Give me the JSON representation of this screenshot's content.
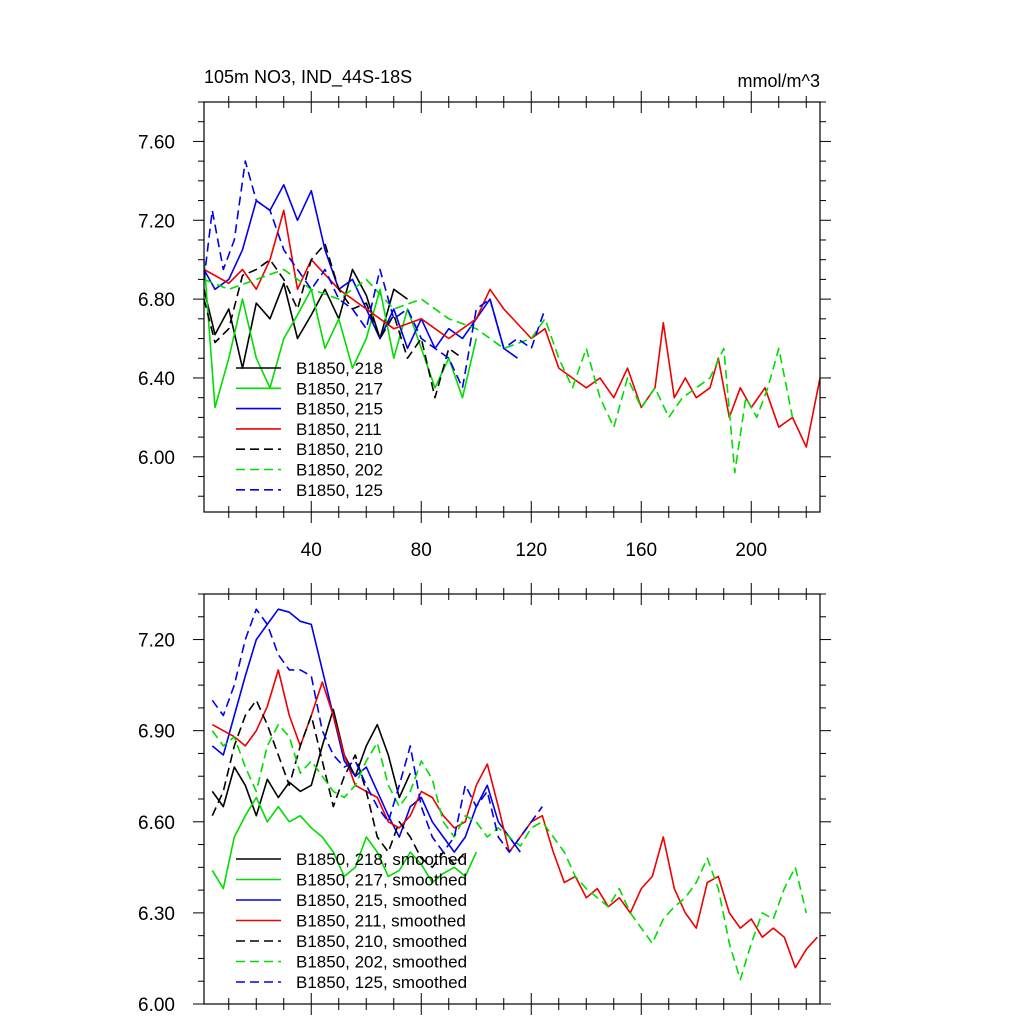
{
  "chart_data": [
    {
      "type": "line",
      "title": "105m NO3, IND_44S-18S",
      "units": "mmol/m^3",
      "xlabel": "",
      "ylabel": "",
      "xlim": [
        1,
        225
      ],
      "ylim": [
        5.72,
        7.8
      ],
      "x_ticks": [
        40,
        80,
        120,
        160,
        200
      ],
      "y_ticks": [
        6.0,
        6.4,
        6.8,
        7.2,
        7.6
      ],
      "y_tick_labels": [
        "6.00",
        "6.40",
        "6.80",
        "7.20",
        "7.60"
      ],
      "x_tick_labels": [
        "40",
        "80",
        "120",
        "160",
        "200"
      ],
      "grid": false,
      "legend": "bottom-left",
      "series": [
        {
          "name": "B1850, 218",
          "color": "#000000",
          "dash": "solid",
          "x": [
            1,
            5,
            10,
            15,
            20,
            25,
            30,
            35,
            40,
            45,
            50,
            55,
            60,
            65,
            70,
            75
          ],
          "y": [
            6.85,
            6.62,
            6.75,
            6.45,
            6.78,
            6.7,
            6.88,
            6.6,
            6.72,
            6.85,
            6.7,
            6.95,
            6.82,
            6.6,
            6.85,
            6.8
          ]
        },
        {
          "name": "B1850, 217",
          "color": "#00dd00",
          "dash": "solid",
          "x": [
            1,
            5,
            10,
            15,
            20,
            25,
            30,
            35,
            40,
            45,
            50,
            55,
            60,
            65,
            70,
            75,
            80,
            85,
            90,
            95,
            100
          ],
          "y": [
            7.0,
            6.25,
            6.5,
            6.8,
            6.5,
            6.35,
            6.6,
            6.72,
            6.85,
            6.55,
            6.7,
            6.45,
            6.6,
            6.85,
            6.5,
            6.75,
            6.55,
            6.35,
            6.5,
            6.3,
            6.6
          ]
        },
        {
          "name": "B1850, 215",
          "color": "#0000ee",
          "dash": "solid",
          "x": [
            1,
            5,
            10,
            15,
            20,
            25,
            30,
            35,
            40,
            45,
            50,
            55,
            60,
            65,
            70,
            75,
            80,
            85,
            90,
            95,
            100,
            105,
            110,
            115
          ],
          "y": [
            6.95,
            6.85,
            6.9,
            7.05,
            7.3,
            7.25,
            7.38,
            7.2,
            7.35,
            7.05,
            6.85,
            6.9,
            6.75,
            6.6,
            6.75,
            6.55,
            6.7,
            6.55,
            6.65,
            6.6,
            6.7,
            6.8,
            6.55,
            6.5
          ]
        },
        {
          "name": "B1850, 211",
          "color": "#ee0000",
          "dash": "solid",
          "x": [
            1,
            5,
            10,
            15,
            20,
            25,
            30,
            35,
            40,
            50,
            60,
            70,
            80,
            90,
            100,
            105,
            110,
            120,
            125,
            130,
            135,
            140,
            145,
            150,
            155,
            160,
            165,
            168,
            172,
            176,
            180,
            185,
            188,
            192,
            196,
            200,
            205,
            210,
            215,
            220,
            225
          ],
          "y": [
            6.95,
            6.92,
            6.88,
            6.95,
            6.85,
            7.0,
            7.25,
            6.85,
            7.0,
            6.85,
            6.75,
            6.65,
            6.7,
            6.6,
            6.7,
            6.85,
            6.75,
            6.6,
            6.65,
            6.45,
            6.4,
            6.35,
            6.4,
            6.3,
            6.45,
            6.25,
            6.35,
            6.68,
            6.3,
            6.4,
            6.3,
            6.35,
            6.5,
            6.2,
            6.35,
            6.25,
            6.35,
            6.15,
            6.2,
            6.05,
            6.4
          ]
        },
        {
          "name": "B1850, 210",
          "color": "#000000",
          "dash": "dashed",
          "x": [
            1,
            5,
            10,
            15,
            20,
            25,
            30,
            35,
            40,
            45,
            50,
            55,
            60,
            65,
            70,
            75,
            80,
            85,
            90,
            95
          ],
          "y": [
            6.8,
            6.58,
            6.65,
            6.92,
            6.95,
            7.0,
            6.9,
            6.75,
            7.0,
            7.08,
            6.85,
            6.75,
            6.78,
            6.6,
            6.72,
            6.5,
            6.6,
            6.3,
            6.55,
            6.5
          ]
        },
        {
          "name": "B1850, 202",
          "color": "#00dd00",
          "dash": "dashed",
          "x": [
            1,
            10,
            20,
            30,
            40,
            50,
            60,
            70,
            80,
            90,
            100,
            110,
            120,
            125,
            130,
            135,
            140,
            145,
            150,
            155,
            160,
            165,
            170,
            175,
            180,
            185,
            190,
            194,
            198,
            202,
            206,
            210,
            215
          ],
          "y": [
            6.9,
            6.85,
            6.9,
            6.95,
            6.85,
            6.8,
            6.9,
            6.75,
            6.8,
            6.7,
            6.65,
            6.55,
            6.6,
            6.7,
            6.5,
            6.35,
            6.55,
            6.3,
            6.15,
            6.4,
            6.25,
            6.35,
            6.2,
            6.3,
            6.35,
            6.4,
            6.55,
            5.92,
            6.3,
            6.2,
            6.35,
            6.55,
            6.2
          ]
        },
        {
          "name": "B1850, 125",
          "color": "#0000ee",
          "dash": "dashed",
          "x": [
            1,
            4,
            8,
            12,
            16,
            20,
            25,
            30,
            35,
            40,
            45,
            50,
            55,
            60,
            65,
            70,
            75,
            80,
            85,
            90,
            95,
            100,
            105,
            110,
            115,
            120,
            125
          ],
          "y": [
            6.9,
            7.25,
            6.95,
            7.1,
            7.5,
            7.3,
            7.25,
            7.05,
            6.95,
            6.85,
            6.95,
            6.8,
            6.75,
            6.65,
            6.95,
            6.7,
            6.75,
            6.6,
            6.55,
            6.5,
            6.35,
            6.75,
            6.8,
            6.55,
            6.6,
            6.55,
            6.75
          ]
        }
      ]
    },
    {
      "type": "line",
      "title": "",
      "xlabel": "",
      "ylabel": "",
      "xlim": [
        1,
        225
      ],
      "ylim": [
        6.0,
        7.35
      ],
      "x_ticks": [
        40,
        80,
        120,
        160,
        200
      ],
      "y_ticks": [
        6.0,
        6.3,
        6.6,
        6.9,
        7.2
      ],
      "y_tick_labels": [
        "6.00",
        "6.30",
        "6.60",
        "6.90",
        "7.20"
      ],
      "grid": false,
      "legend": "bottom-left",
      "series": [
        {
          "name": "B1850, 218, smoothed",
          "color": "#000000",
          "dash": "solid",
          "x": [
            4,
            8,
            12,
            16,
            20,
            24,
            28,
            32,
            36,
            40,
            44,
            48,
            52,
            56,
            60,
            64,
            68,
            72,
            76
          ],
          "y": [
            6.7,
            6.65,
            6.78,
            6.72,
            6.62,
            6.74,
            6.68,
            6.73,
            6.7,
            6.72,
            6.85,
            6.97,
            6.82,
            6.75,
            6.85,
            6.92,
            6.82,
            6.68,
            6.76
          ]
        },
        {
          "name": "B1850, 217, smoothed",
          "color": "#00dd00",
          "dash": "solid",
          "x": [
            4,
            8,
            12,
            16,
            20,
            24,
            28,
            32,
            36,
            40,
            44,
            48,
            52,
            56,
            60,
            64,
            68,
            72,
            76,
            80,
            84,
            88,
            92,
            96,
            100
          ],
          "y": [
            6.44,
            6.38,
            6.55,
            6.62,
            6.68,
            6.6,
            6.65,
            6.6,
            6.62,
            6.58,
            6.55,
            6.5,
            6.42,
            6.45,
            6.55,
            6.5,
            6.42,
            6.44,
            6.5,
            6.46,
            6.4,
            6.43,
            6.45,
            6.42,
            6.5
          ]
        },
        {
          "name": "B1850, 215, smoothed",
          "color": "#0000ee",
          "dash": "solid",
          "x": [
            4,
            8,
            12,
            16,
            20,
            24,
            28,
            32,
            36,
            40,
            44,
            48,
            52,
            56,
            60,
            64,
            68,
            72,
            76,
            80,
            84,
            88,
            92,
            96,
            100,
            104,
            108,
            112,
            116
          ],
          "y": [
            6.85,
            6.82,
            6.95,
            7.08,
            7.2,
            7.25,
            7.3,
            7.29,
            7.26,
            7.25,
            7.1,
            6.95,
            6.8,
            6.75,
            6.78,
            6.7,
            6.62,
            6.55,
            6.65,
            6.68,
            6.6,
            6.55,
            6.5,
            6.55,
            6.65,
            6.72,
            6.6,
            6.55,
            6.5
          ]
        },
        {
          "name": "B1850, 211, smoothed",
          "color": "#ee0000",
          "dash": "solid",
          "x": [
            4,
            8,
            12,
            16,
            20,
            24,
            28,
            32,
            36,
            40,
            44,
            48,
            52,
            56,
            60,
            64,
            68,
            72,
            76,
            80,
            84,
            88,
            92,
            96,
            100,
            104,
            108,
            112,
            116,
            120,
            124,
            128,
            132,
            136,
            140,
            144,
            148,
            152,
            156,
            160,
            164,
            168,
            172,
            176,
            180,
            184,
            188,
            192,
            196,
            200,
            204,
            208,
            212,
            216,
            220,
            224
          ],
          "y": [
            6.92,
            6.9,
            6.88,
            6.85,
            6.9,
            6.98,
            7.1,
            6.95,
            6.85,
            6.95,
            7.06,
            6.95,
            6.82,
            6.72,
            6.7,
            6.68,
            6.6,
            6.58,
            6.62,
            6.7,
            6.68,
            6.62,
            6.58,
            6.6,
            6.72,
            6.79,
            6.65,
            6.5,
            6.55,
            6.6,
            6.62,
            6.5,
            6.4,
            6.42,
            6.35,
            6.38,
            6.32,
            6.35,
            6.3,
            6.38,
            6.42,
            6.55,
            6.38,
            6.3,
            6.25,
            6.4,
            6.42,
            6.3,
            6.25,
            6.28,
            6.22,
            6.25,
            6.22,
            6.12,
            6.18,
            6.22
          ]
        },
        {
          "name": "B1850, 210, smoothed",
          "color": "#000000",
          "dash": "dashed",
          "x": [
            4,
            8,
            12,
            16,
            20,
            24,
            28,
            32,
            36,
            40,
            44,
            48,
            52,
            56,
            60,
            64,
            68,
            72,
            76,
            80,
            84,
            88,
            92,
            96
          ],
          "y": [
            6.62,
            6.7,
            6.85,
            6.95,
            7.0,
            6.92,
            6.82,
            6.72,
            6.85,
            6.95,
            6.8,
            6.65,
            6.75,
            6.82,
            6.7,
            6.55,
            6.5,
            6.6,
            6.55,
            6.48,
            6.45,
            6.5,
            6.46,
            6.5
          ]
        },
        {
          "name": "B1850, 202, smoothed",
          "color": "#00dd00",
          "dash": "dashed",
          "x": [
            4,
            8,
            12,
            16,
            20,
            24,
            28,
            32,
            36,
            40,
            44,
            48,
            52,
            56,
            60,
            64,
            68,
            72,
            76,
            80,
            84,
            88,
            92,
            96,
            100,
            104,
            108,
            112,
            116,
            120,
            124,
            128,
            132,
            136,
            140,
            144,
            148,
            152,
            156,
            160,
            164,
            168,
            172,
            176,
            180,
            184,
            188,
            192,
            196,
            200,
            204,
            208,
            212,
            216,
            220
          ],
          "y": [
            6.9,
            6.85,
            6.88,
            6.78,
            6.7,
            6.85,
            6.92,
            6.88,
            6.76,
            6.8,
            6.75,
            6.7,
            6.68,
            6.72,
            6.8,
            6.86,
            6.72,
            6.65,
            6.7,
            6.8,
            6.74,
            6.6,
            6.55,
            6.62,
            6.6,
            6.55,
            6.58,
            6.55,
            6.52,
            6.58,
            6.6,
            6.55,
            6.5,
            6.42,
            6.38,
            6.35,
            6.32,
            6.38,
            6.3,
            6.25,
            6.2,
            6.28,
            6.32,
            6.35,
            6.4,
            6.48,
            6.38,
            6.2,
            6.08,
            6.2,
            6.3,
            6.28,
            6.38,
            6.45,
            6.3
          ]
        },
        {
          "name": "B1850, 125, smoothed",
          "color": "#0000ee",
          "dash": "dashed",
          "x": [
            4,
            8,
            12,
            16,
            20,
            24,
            28,
            32,
            36,
            40,
            44,
            48,
            52,
            56,
            60,
            64,
            68,
            72,
            76,
            80,
            84,
            88,
            92,
            96,
            100,
            104,
            108,
            112,
            116,
            120,
            124
          ],
          "y": [
            7.0,
            6.95,
            7.05,
            7.2,
            7.3,
            7.25,
            7.15,
            7.1,
            7.1,
            7.08,
            6.9,
            6.82,
            6.78,
            6.8,
            6.72,
            6.65,
            6.6,
            6.72,
            6.85,
            6.65,
            6.55,
            6.5,
            6.55,
            6.72,
            6.65,
            6.7,
            6.55,
            6.5,
            6.55,
            6.6,
            6.65
          ]
        }
      ]
    }
  ]
}
